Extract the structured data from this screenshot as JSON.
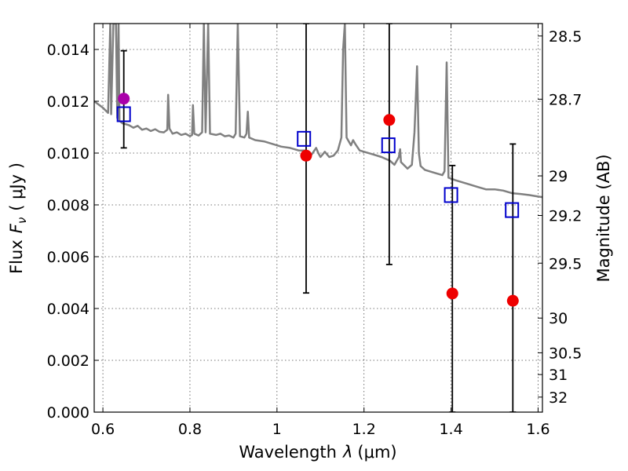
{
  "chart_data": {
    "type": "scatter",
    "xlabel_prefix": "Wavelength",
    "xlabel_var": "λ",
    "xlabel_units": "(μm)",
    "ylabel_prefix": "Flux",
    "ylabel_var": "F",
    "ylabel_sub": "ν",
    "ylabel_units": "( μJy )",
    "ylabel_right": "Magnitude (AB)",
    "xlim": [
      0.58,
      1.61
    ],
    "ylim": [
      0.0,
      0.015
    ],
    "grid": true,
    "x_ticks": [
      {
        "value": 0.6,
        "label": "0.6"
      },
      {
        "value": 0.8,
        "label": "0.8"
      },
      {
        "value": 1.0,
        "label": "1"
      },
      {
        "value": 1.2,
        "label": "1.2"
      },
      {
        "value": 1.4,
        "label": "1.4"
      },
      {
        "value": 1.6,
        "label": "1.6"
      }
    ],
    "y_ticks": [
      {
        "value": 0.0,
        "label": "0.000"
      },
      {
        "value": 0.002,
        "label": "0.002"
      },
      {
        "value": 0.004,
        "label": "0.004"
      },
      {
        "value": 0.006,
        "label": "0.006"
      },
      {
        "value": 0.008,
        "label": "0.008"
      },
      {
        "value": 0.01,
        "label": "0.010"
      },
      {
        "value": 0.012,
        "label": "0.012"
      },
      {
        "value": 0.014,
        "label": "0.014"
      }
    ],
    "mag_ticks": [
      {
        "value": 0.01452,
        "label": "28.5"
      },
      {
        "value": 0.01208,
        "label": "28.7"
      },
      {
        "value": 0.00912,
        "label": "29"
      },
      {
        "value": 0.00759,
        "label": "29.2"
      },
      {
        "value": 0.00575,
        "label": "29.5"
      },
      {
        "value": 0.00363,
        "label": "30"
      },
      {
        "value": 0.00229,
        "label": "30.5"
      },
      {
        "value": 0.00145,
        "label": "31"
      },
      {
        "value": 0.00058,
        "label": "32"
      }
    ],
    "observed": [
      {
        "x": 0.648,
        "y": 0.0121,
        "err_low": 0.0102,
        "err_high": 0.01395,
        "color": "#aa00aa"
      },
      {
        "x": 1.067,
        "y": 0.0099,
        "err_low": 0.0046,
        "err_high": 0.015,
        "color": "#ee0000"
      },
      {
        "x": 1.258,
        "y": 0.01128,
        "err_low": 0.0057,
        "err_high": 0.015,
        "color": "#ee0000"
      },
      {
        "x": 1.403,
        "y": 0.00458,
        "err_low": 0.0,
        "err_high": 0.00952,
        "color": "#ee0000"
      },
      {
        "x": 1.542,
        "y": 0.0043,
        "err_low": 0.0,
        "err_high": 0.01035,
        "color": "#ee0000"
      }
    ],
    "model_fluxes": [
      {
        "x": 0.648,
        "y": 0.0115
      },
      {
        "x": 1.062,
        "y": 0.01055
      },
      {
        "x": 1.256,
        "y": 0.0103
      },
      {
        "x": 1.4,
        "y": 0.00838
      },
      {
        "x": 1.54,
        "y": 0.0078
      }
    ],
    "sed_model": [
      [
        0.58,
        0.012
      ],
      [
        0.6,
        0.01175
      ],
      [
        0.612,
        0.01155
      ],
      [
        0.617,
        0.015
      ],
      [
        0.619,
        0.0115
      ],
      [
        0.624,
        0.015
      ],
      [
        0.626,
        0.015
      ],
      [
        0.63,
        0.015
      ],
      [
        0.633,
        0.01135
      ],
      [
        0.636,
        0.015
      ],
      [
        0.638,
        0.01125
      ],
      [
        0.645,
        0.01115
      ],
      [
        0.66,
        0.01108
      ],
      [
        0.67,
        0.01098
      ],
      [
        0.68,
        0.01105
      ],
      [
        0.69,
        0.0109
      ],
      [
        0.7,
        0.01095
      ],
      [
        0.71,
        0.01085
      ],
      [
        0.72,
        0.01092
      ],
      [
        0.73,
        0.01082
      ],
      [
        0.74,
        0.0108
      ],
      [
        0.748,
        0.0109
      ],
      [
        0.75,
        0.01225
      ],
      [
        0.753,
        0.01095
      ],
      [
        0.76,
        0.01075
      ],
      [
        0.77,
        0.0108
      ],
      [
        0.78,
        0.0107
      ],
      [
        0.79,
        0.01075
      ],
      [
        0.8,
        0.01065
      ],
      [
        0.805,
        0.0107
      ],
      [
        0.807,
        0.01185
      ],
      [
        0.81,
        0.01075
      ],
      [
        0.82,
        0.01068
      ],
      [
        0.828,
        0.0108
      ],
      [
        0.832,
        0.015
      ],
      [
        0.836,
        0.0108
      ],
      [
        0.842,
        0.015
      ],
      [
        0.846,
        0.01075
      ],
      [
        0.86,
        0.0107
      ],
      [
        0.87,
        0.01075
      ],
      [
        0.88,
        0.01065
      ],
      [
        0.89,
        0.01068
      ],
      [
        0.9,
        0.0106
      ],
      [
        0.905,
        0.01075
      ],
      [
        0.91,
        0.015
      ],
      [
        0.915,
        0.01065
      ],
      [
        0.925,
        0.0106
      ],
      [
        0.93,
        0.01075
      ],
      [
        0.933,
        0.0116
      ],
      [
        0.936,
        0.0106
      ],
      [
        0.95,
        0.0105
      ],
      [
        0.97,
        0.01045
      ],
      [
        0.99,
        0.01035
      ],
      [
        1.01,
        0.01025
      ],
      [
        1.03,
        0.0102
      ],
      [
        1.05,
        0.0101
      ],
      [
        1.065,
        0.0101
      ],
      [
        1.08,
        0.00995
      ],
      [
        1.09,
        0.0102
      ],
      [
        1.095,
        0.01
      ],
      [
        1.1,
        0.00985
      ],
      [
        1.11,
        0.01005
      ],
      [
        1.12,
        0.00985
      ],
      [
        1.13,
        0.0099
      ],
      [
        1.14,
        0.0101
      ],
      [
        1.148,
        0.0106
      ],
      [
        1.152,
        0.014
      ],
      [
        1.156,
        0.015
      ],
      [
        1.16,
        0.0106
      ],
      [
        1.17,
        0.0103
      ],
      [
        1.175,
        0.0105
      ],
      [
        1.18,
        0.01035
      ],
      [
        1.19,
        0.0101
      ],
      [
        1.2,
        0.01005
      ],
      [
        1.22,
        0.00995
      ],
      [
        1.24,
        0.00985
      ],
      [
        1.26,
        0.0097
      ],
      [
        1.27,
        0.00955
      ],
      [
        1.28,
        0.00985
      ],
      [
        1.283,
        0.01015
      ],
      [
        1.285,
        0.00965
      ],
      [
        1.3,
        0.0094
      ],
      [
        1.31,
        0.00955
      ],
      [
        1.316,
        0.0108
      ],
      [
        1.322,
        0.01335
      ],
      [
        1.326,
        0.01
      ],
      [
        1.33,
        0.0095
      ],
      [
        1.34,
        0.00935
      ],
      [
        1.36,
        0.00925
      ],
      [
        1.38,
        0.00915
      ],
      [
        1.385,
        0.0093
      ],
      [
        1.39,
        0.0135
      ],
      [
        1.394,
        0.00905
      ],
      [
        1.41,
        0.00895
      ],
      [
        1.44,
        0.0088
      ],
      [
        1.46,
        0.0087
      ],
      [
        1.48,
        0.0086
      ],
      [
        1.5,
        0.0086
      ],
      [
        1.52,
        0.00855
      ],
      [
        1.54,
        0.00845
      ],
      [
        1.56,
        0.00842
      ],
      [
        1.58,
        0.00838
      ],
      [
        1.6,
        0.00832
      ],
      [
        1.61,
        0.0083
      ]
    ]
  }
}
